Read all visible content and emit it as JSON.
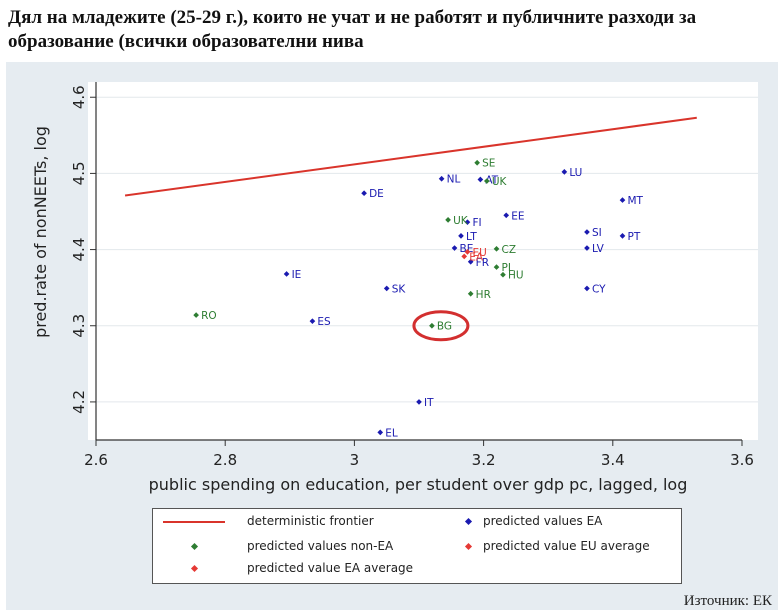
{
  "title": "Дял на младежите (25-29 г.), които не учат и не работят и публичните разходи за образование (всички образователни нива",
  "source": "Източник: ЕК",
  "colors": {
    "ea": "#1a1ab0",
    "non_ea": "#2e7d32",
    "frontier": "#d9342b",
    "eu_avg": "#e53935",
    "ea_avg": "#e53935",
    "highlight": "#d32f2f",
    "background": "#e6ecf1"
  },
  "legend": {
    "frontier": "deterministic frontier",
    "ea": "predicted values EA",
    "non_ea": "predicted values non-EA",
    "eu_avg": "predicted value EU average",
    "ea_avg": "predicted value EA average"
  },
  "chart_data": {
    "type": "scatter",
    "xlabel": "public spending on education, per student over gdp pc, lagged, log",
    "ylabel": "pred.rate of nonNEETs, log",
    "xlim": [
      2.6,
      3.6
    ],
    "ylim": [
      4.15,
      4.62
    ],
    "xticks": [
      "2.6",
      "2.8",
      "3",
      "3.2",
      "3.4",
      "3.6"
    ],
    "yticks": [
      "4.2",
      "4.3",
      "4.4",
      "4.5",
      "4.6"
    ],
    "grid": true,
    "legend_position": "bottom",
    "frontier": {
      "name": "deterministic frontier",
      "points": [
        [
          2.645,
          4.471
        ],
        [
          3.53,
          4.573
        ]
      ]
    },
    "highlight": "BG",
    "series": [
      {
        "name": "predicted values EA",
        "group": "ea",
        "points": [
          {
            "label": "LU",
            "x": 3.325,
            "y": 4.502
          },
          {
            "label": "NL",
            "x": 3.135,
            "y": 4.493
          },
          {
            "label": "AT",
            "x": 3.195,
            "y": 4.492
          },
          {
            "label": "DE",
            "x": 3.015,
            "y": 4.474
          },
          {
            "label": "MT",
            "x": 3.415,
            "y": 4.465
          },
          {
            "label": "EE",
            "x": 3.235,
            "y": 4.445
          },
          {
            "label": "FI",
            "x": 3.175,
            "y": 4.436
          },
          {
            "label": "SI",
            "x": 3.36,
            "y": 4.423
          },
          {
            "label": "LT",
            "x": 3.165,
            "y": 4.418
          },
          {
            "label": "PT",
            "x": 3.415,
            "y": 4.418
          },
          {
            "label": "BE",
            "x": 3.155,
            "y": 4.402
          },
          {
            "label": "LV",
            "x": 3.36,
            "y": 4.402
          },
          {
            "label": "FR",
            "x": 3.18,
            "y": 4.384
          },
          {
            "label": "IE",
            "x": 2.895,
            "y": 4.368
          },
          {
            "label": "SK",
            "x": 3.05,
            "y": 4.349
          },
          {
            "label": "CY",
            "x": 3.36,
            "y": 4.349
          },
          {
            "label": "ES",
            "x": 2.935,
            "y": 4.306
          },
          {
            "label": "IT",
            "x": 3.1,
            "y": 4.2
          },
          {
            "label": "EL",
            "x": 3.04,
            "y": 4.16
          }
        ]
      },
      {
        "name": "predicted values non-EA",
        "group": "non_ea",
        "points": [
          {
            "label": "SE",
            "x": 3.19,
            "y": 4.514
          },
          {
            "label": "UK",
            "x": 3.205,
            "y": 4.49
          },
          {
            "label": "UK",
            "x": 3.145,
            "y": 4.439
          },
          {
            "label": "CZ",
            "x": 3.22,
            "y": 4.401
          },
          {
            "label": "PL",
            "x": 3.22,
            "y": 4.377
          },
          {
            "label": "HU",
            "x": 3.23,
            "y": 4.367
          },
          {
            "label": "HR",
            "x": 3.18,
            "y": 4.342
          },
          {
            "label": "RO",
            "x": 2.755,
            "y": 4.314
          },
          {
            "label": "BG",
            "x": 3.12,
            "y": 4.3
          }
        ]
      },
      {
        "name": "predicted value EU average",
        "group": "eu_avg",
        "points": [
          {
            "label": "EU",
            "x": 3.175,
            "y": 4.397
          }
        ]
      },
      {
        "name": "predicted value EA average",
        "group": "ea_avg",
        "points": [
          {
            "label": "EA",
            "x": 3.17,
            "y": 4.391
          }
        ]
      }
    ]
  }
}
